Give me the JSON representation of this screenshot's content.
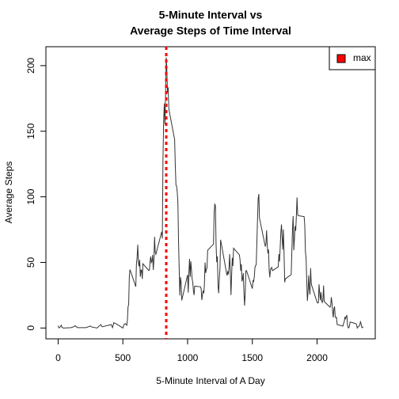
{
  "chart_data": {
    "type": "line",
    "title": [
      "5-Minute Interval vs",
      "Average Steps of Time Interval"
    ],
    "xlabel": "5-Minute Interval of A Day",
    "ylabel": "Average Steps",
    "color": "#333333",
    "x": [
      0,
      5,
      10,
      25,
      30,
      40,
      100,
      125,
      130,
      150,
      215,
      250,
      255,
      300,
      330,
      340,
      410,
      420,
      430,
      440,
      450,
      500,
      510,
      520,
      530,
      535,
      540,
      545,
      550,
      555,
      600,
      605,
      610,
      615,
      620,
      625,
      630,
      635,
      640,
      645,
      650,
      655,
      700,
      705,
      710,
      715,
      720,
      725,
      730,
      735,
      740,
      745,
      750,
      755,
      800,
      805,
      810,
      815,
      820,
      825,
      830,
      835,
      840,
      845,
      850,
      855,
      900,
      905,
      910,
      915,
      920,
      925,
      930,
      935,
      940,
      945,
      950,
      955,
      1000,
      1005,
      1010,
      1015,
      1020,
      1025,
      1030,
      1035,
      1040,
      1045,
      1050,
      1055,
      1100,
      1105,
      1110,
      1115,
      1120,
      1125,
      1130,
      1135,
      1140,
      1145,
      1150,
      1155,
      1200,
      1205,
      1210,
      1215,
      1220,
      1225,
      1230,
      1235,
      1240,
      1245,
      1250,
      1255,
      1300,
      1305,
      1310,
      1315,
      1320,
      1325,
      1330,
      1335,
      1340,
      1345,
      1350,
      1355,
      1400,
      1405,
      1410,
      1415,
      1420,
      1425,
      1430,
      1435,
      1440,
      1445,
      1450,
      1455,
      1500,
      1505,
      1510,
      1515,
      1520,
      1525,
      1530,
      1535,
      1540,
      1545,
      1550,
      1555,
      1600,
      1605,
      1610,
      1615,
      1620,
      1625,
      1630,
      1635,
      1640,
      1645,
      1650,
      1655,
      1700,
      1705,
      1710,
      1715,
      1720,
      1725,
      1730,
      1735,
      1740,
      1745,
      1750,
      1755,
      1800,
      1805,
      1810,
      1815,
      1820,
      1825,
      1830,
      1835,
      1840,
      1845,
      1850,
      1855,
      1900,
      1905,
      1910,
      1915,
      1920,
      1925,
      1930,
      1935,
      1940,
      1945,
      1950,
      1955,
      2000,
      2005,
      2010,
      2015,
      2020,
      2025,
      2030,
      2035,
      2040,
      2045,
      2050,
      2055,
      2100,
      2105,
      2110,
      2115,
      2120,
      2125,
      2130,
      2135,
      2140,
      2145,
      2150,
      2155,
      2200,
      2205,
      2210,
      2215,
      2220,
      2225,
      2230,
      2235,
      2240,
      2245,
      2250,
      2255,
      2300,
      2305,
      2310,
      2315,
      2320,
      2325,
      2330,
      2335,
      2340,
      2345,
      2350,
      2355
    ],
    "values": [
      1.7,
      0.3,
      0.1,
      2.1,
      0.5,
      0,
      0.3,
      1.1,
      1.8,
      0.3,
      0.3,
      1.5,
      0.9,
      0,
      2.6,
      0.9,
      2.6,
      0.3,
      4.1,
      3.5,
      3.1,
      0,
      3,
      3.3,
      2.1,
      6,
      16,
      18,
      39.5,
      44.5,
      31.5,
      49,
      53.8,
      63.5,
      50,
      47,
      52,
      39,
      44,
      44.2,
      37.4,
      49,
      43.8,
      44.4,
      50.5,
      54.5,
      49.9,
      51,
      55.7,
      44.3,
      52.3,
      69.5,
      57.8,
      56.2,
      73.4,
      68.2,
      129.4,
      157.5,
      171.2,
      155.4,
      177.3,
      206.2,
      195.9,
      179.6,
      183.4,
      167,
      143.5,
      124,
      109.1,
      108.1,
      103.7,
      95.9,
      66.2,
      45.2,
      24.8,
      38.8,
      34.98,
      21.06,
      40.6,
      26.98,
      42.4,
      52.7,
      38.9,
      50.8,
      44.3,
      37.4,
      34.7,
      28.3,
      25.1,
      31.9,
      31.4,
      29.7,
      21.3,
      25.5,
      28.4,
      26.5,
      33.4,
      50,
      42,
      44.6,
      46,
      59.3,
      63.9,
      87.7,
      94.8,
      92.8,
      63.4,
      50.2,
      54.5,
      32.4,
      26.5,
      37.7,
      45.1,
      67.3,
      42.3,
      39.9,
      43.3,
      40.98,
      46.2,
      56.4,
      42.75,
      25.1,
      39.96,
      53.5,
      47.3,
      60.8,
      55.75,
      51.96,
      43.6,
      48.7,
      35.5,
      37.5,
      41.8,
      27.5,
      17.1,
      26.1,
      43.6,
      43.8,
      30,
      36.1,
      35.5,
      38.8,
      45.96,
      47.75,
      48.1,
      65.3,
      82.9,
      98.7,
      102.1,
      83.96,
      62.1,
      64.1,
      74.5,
      63.2,
      56.9,
      59.8,
      43.9,
      38.6,
      44.7,
      45.5,
      46.2,
      43.7,
      46.6,
      56.3,
      50.7,
      61.2,
      72.7,
      78.9,
      68.9,
      59.7,
      75.1,
      56.5,
      34.8,
      37.5,
      40.7,
      58,
      74.7,
      85.3,
      59.3,
      67.8,
      77.7,
      74.2,
      85.3,
      99.5,
      86.6,
      85.6,
      84.9,
      77.8,
      58,
      53.4,
      36.3,
      20.7,
      27.4,
      40,
      30.2,
      25.5,
      45.7,
      33.5,
      19.6,
      19,
      19.3,
      33.3,
      26.8,
      21.2,
      27.3,
      21.3,
      19.5,
      21.3,
      32.3,
      20.2,
      15.9,
      17.2,
      23.5,
      19.2,
      12.5,
      8,
      14.7,
      16.3,
      8.7,
      7.8,
      8.1,
      2.6,
      1.5,
      3.7,
      4.8,
      8.5,
      7.1,
      8.7,
      9.8,
      2.2,
      0.3,
      0.1,
      1.6,
      4.6,
      3.3,
      2.8,
      0,
      0.8,
      1,
      1.6,
      2.6,
      4.7,
      3.3,
      0.6,
      0.2,
      1.1
    ],
    "xlim": [
      -94.2,
      2449.2
    ],
    "ylim": [
      -8.25,
      214.42
    ],
    "xticks": [
      0,
      500,
      1000,
      1500,
      2000
    ],
    "yticks": [
      0,
      50,
      100,
      150,
      200
    ],
    "max_line": {
      "x": 835,
      "color": "#ff0000"
    },
    "legend": {
      "labels": [
        "max"
      ],
      "color": "#ff0000",
      "position": "topright"
    }
  }
}
